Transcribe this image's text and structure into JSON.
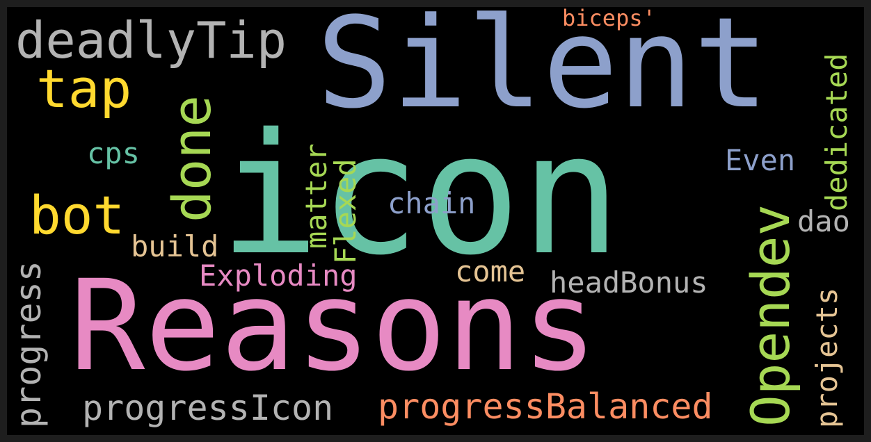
{
  "word_cloud": {
    "words": [
      {
        "text": "Silent",
        "color": "#8da0cb"
      },
      {
        "text": "icon",
        "color": "#66c2a5"
      },
      {
        "text": "Reasons",
        "color": "#e78ac3"
      },
      {
        "text": "deadlyTip",
        "color": "#b3b3b3"
      },
      {
        "text": "tap",
        "color": "#ffd92f"
      },
      {
        "text": "bot",
        "color": "#ffd92f"
      },
      {
        "text": "done",
        "color": "#a6d854"
      },
      {
        "text": "Opendev",
        "color": "#a6d854"
      },
      {
        "text": "cps",
        "color": "#66c2a5"
      },
      {
        "text": "build",
        "color": "#e5c494"
      },
      {
        "text": "biceps'",
        "color": "#fc8d62"
      },
      {
        "text": "dedicated",
        "color": "#a6d854"
      },
      {
        "text": "Even",
        "color": "#8da0cb"
      },
      {
        "text": "dao",
        "color": "#b3b3b3"
      },
      {
        "text": "chain",
        "color": "#8da0cb"
      },
      {
        "text": "matter",
        "color": "#a6d854"
      },
      {
        "text": "Flexed",
        "color": "#a6d854"
      },
      {
        "text": "Exploding",
        "color": "#e78ac3"
      },
      {
        "text": "come",
        "color": "#e5c494"
      },
      {
        "text": "headBonus",
        "color": "#b3b3b3"
      },
      {
        "text": "projects",
        "color": "#e5c494"
      },
      {
        "text": "progress",
        "color": "#b3b3b3"
      },
      {
        "text": "progressIcon",
        "color": "#b3b3b3"
      },
      {
        "text": "progressBalanced",
        "color": "#fc8d62"
      }
    ]
  }
}
